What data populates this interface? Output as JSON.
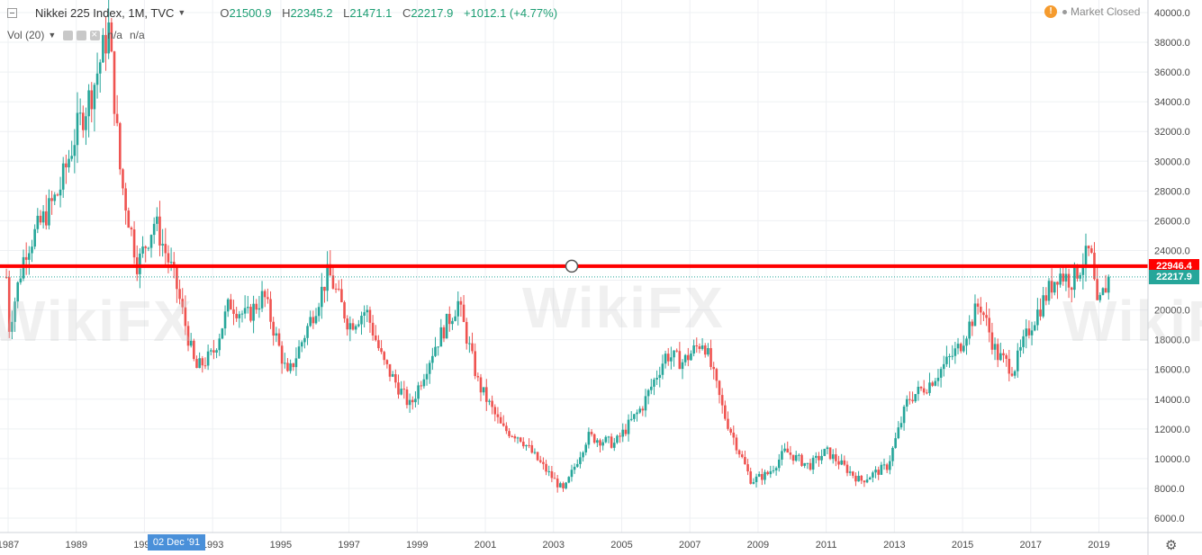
{
  "header": {
    "symbol": "Nikkei 225 Index, 1M, TVC",
    "open_label": "O",
    "open": "21500.9",
    "high_label": "H",
    "high": "22345.2",
    "low_label": "L",
    "low": "21471.1",
    "close_label": "C",
    "close": "22217.9",
    "change": "+1012.1 (+4.77%)"
  },
  "volume": {
    "label": "Vol (20)",
    "value1": "n/a",
    "value2": "n/a"
  },
  "market_status": "Market Closed",
  "crosshair_date": "02 Dec '91",
  "watermark": "WikiFX",
  "colors": {
    "up": "#26a69a",
    "down": "#ef5350",
    "hline": "#ff0000",
    "last_price": "#26a69a"
  },
  "chart_data": {
    "type": "candlestick",
    "yaxis": {
      "ticks": [
        6000,
        8000,
        10000,
        12000,
        14000,
        16000,
        18000,
        20000,
        22000,
        24000,
        26000,
        28000,
        30000,
        32000,
        34000,
        36000,
        38000,
        40000
      ],
      "top_label": "40000.0",
      "range": [
        5000,
        40500
      ]
    },
    "xaxis": {
      "ticks": [
        "1987",
        "1989",
        "1991",
        "1993",
        "1995",
        "1997",
        "1999",
        "2001",
        "2003",
        "2005",
        "2007",
        "2009",
        "2011",
        "2013",
        "2015",
        "2017",
        "2019"
      ],
      "range": [
        1987,
        2020
      ]
    },
    "horizontal_line": {
      "price": 22946.4,
      "label": "22946.4"
    },
    "last_price": {
      "price": 22217.9,
      "label": "22217.9"
    },
    "series_yearly": [
      {
        "x": 1987,
        "y": 18500
      },
      {
        "x": 1987.5,
        "y": 24000
      },
      {
        "x": 1988,
        "y": 26000
      },
      {
        "x": 1988.5,
        "y": 28000
      },
      {
        "x": 1989,
        "y": 32000
      },
      {
        "x": 1989.5,
        "y": 35000
      },
      {
        "x": 1989.95,
        "y": 38900
      },
      {
        "x": 1990.3,
        "y": 29000
      },
      {
        "x": 1990.8,
        "y": 23000
      },
      {
        "x": 1991.3,
        "y": 26000
      },
      {
        "x": 1991.9,
        "y": 22000
      },
      {
        "x": 1992.5,
        "y": 16000
      },
      {
        "x": 1993,
        "y": 17000
      },
      {
        "x": 1993.5,
        "y": 20500
      },
      {
        "x": 1994,
        "y": 19500
      },
      {
        "x": 1994.5,
        "y": 21000
      },
      {
        "x": 1995.2,
        "y": 15500
      },
      {
        "x": 1995.9,
        "y": 19500
      },
      {
        "x": 1996.4,
        "y": 22500
      },
      {
        "x": 1997,
        "y": 19000
      },
      {
        "x": 1997.5,
        "y": 20000
      },
      {
        "x": 1998,
        "y": 16500
      },
      {
        "x": 1998.8,
        "y": 13500
      },
      {
        "x": 1999.5,
        "y": 17500
      },
      {
        "x": 2000.2,
        "y": 20500
      },
      {
        "x": 2000.8,
        "y": 15000
      },
      {
        "x": 2001.5,
        "y": 12000
      },
      {
        "x": 2002,
        "y": 11500
      },
      {
        "x": 2002.5,
        "y": 10000
      },
      {
        "x": 2003.3,
        "y": 7800
      },
      {
        "x": 2004,
        "y": 11500
      },
      {
        "x": 2004.8,
        "y": 11000
      },
      {
        "x": 2005.6,
        "y": 13500
      },
      {
        "x": 2006.3,
        "y": 17000
      },
      {
        "x": 2006.8,
        "y": 16500
      },
      {
        "x": 2007.4,
        "y": 18000
      },
      {
        "x": 2008,
        "y": 13000
      },
      {
        "x": 2008.8,
        "y": 8500
      },
      {
        "x": 2009.3,
        "y": 9000
      },
      {
        "x": 2009.8,
        "y": 10500
      },
      {
        "x": 2010.5,
        "y": 9500
      },
      {
        "x": 2011,
        "y": 10500
      },
      {
        "x": 2011.5,
        "y": 9500
      },
      {
        "x": 2012,
        "y": 8500
      },
      {
        "x": 2012.8,
        "y": 9500
      },
      {
        "x": 2013.4,
        "y": 14000
      },
      {
        "x": 2014,
        "y": 15000
      },
      {
        "x": 2014.9,
        "y": 17500
      },
      {
        "x": 2015.5,
        "y": 20500
      },
      {
        "x": 2016,
        "y": 17000
      },
      {
        "x": 2016.5,
        "y": 16000
      },
      {
        "x": 2017,
        "y": 19000
      },
      {
        "x": 2017.8,
        "y": 22500
      },
      {
        "x": 2018.2,
        "y": 22000
      },
      {
        "x": 2018.75,
        "y": 24000
      },
      {
        "x": 2018.95,
        "y": 20000
      },
      {
        "x": 2019.3,
        "y": 22217.9
      }
    ]
  }
}
